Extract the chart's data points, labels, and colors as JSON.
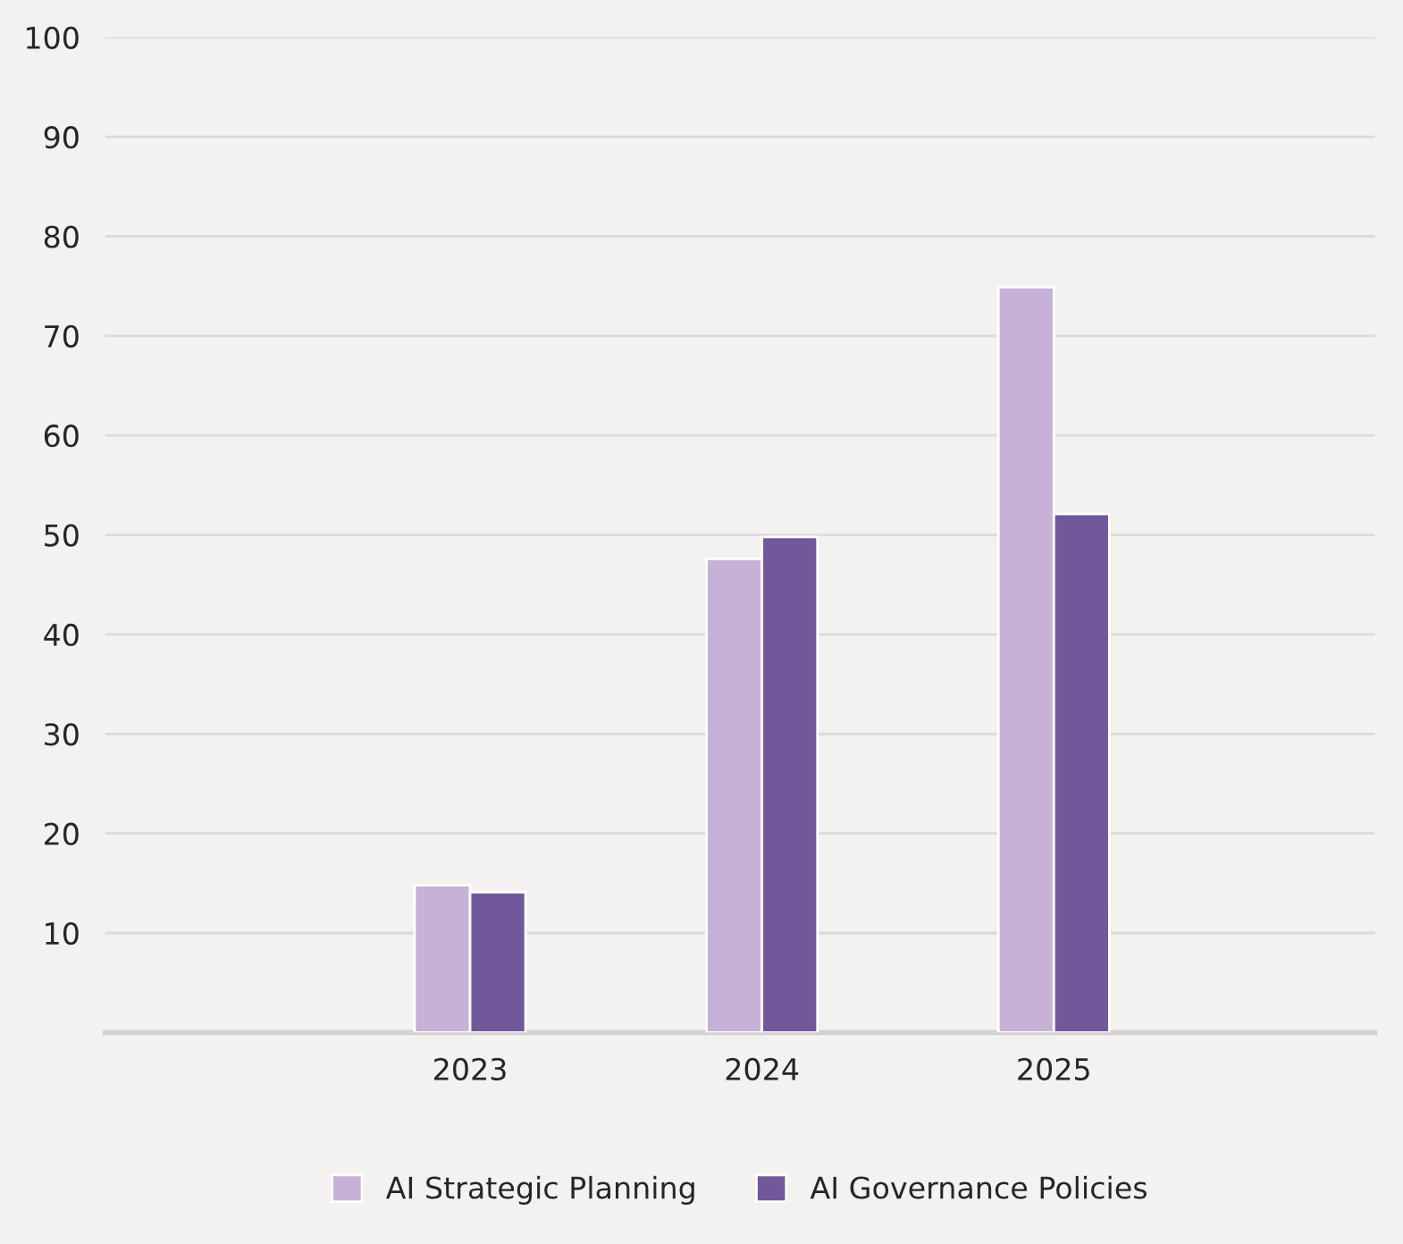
{
  "chart_data": {
    "type": "bar",
    "categories": [
      "2023",
      "2024",
      "2025"
    ],
    "series": [
      {
        "name": "AI Strategic Planning",
        "color": "#c7b1d6",
        "values": [
          14.8,
          47.6,
          74.9
        ]
      },
      {
        "name": "AI Governance Policies",
        "color": "#70589b",
        "values": [
          14.1,
          49.8,
          52.1
        ]
      }
    ],
    "ylim": [
      0,
      100
    ],
    "yticks": [
      10,
      20,
      30,
      40,
      50,
      60,
      70,
      80,
      90,
      100
    ],
    "grid": "y",
    "legend": "bottom"
  }
}
